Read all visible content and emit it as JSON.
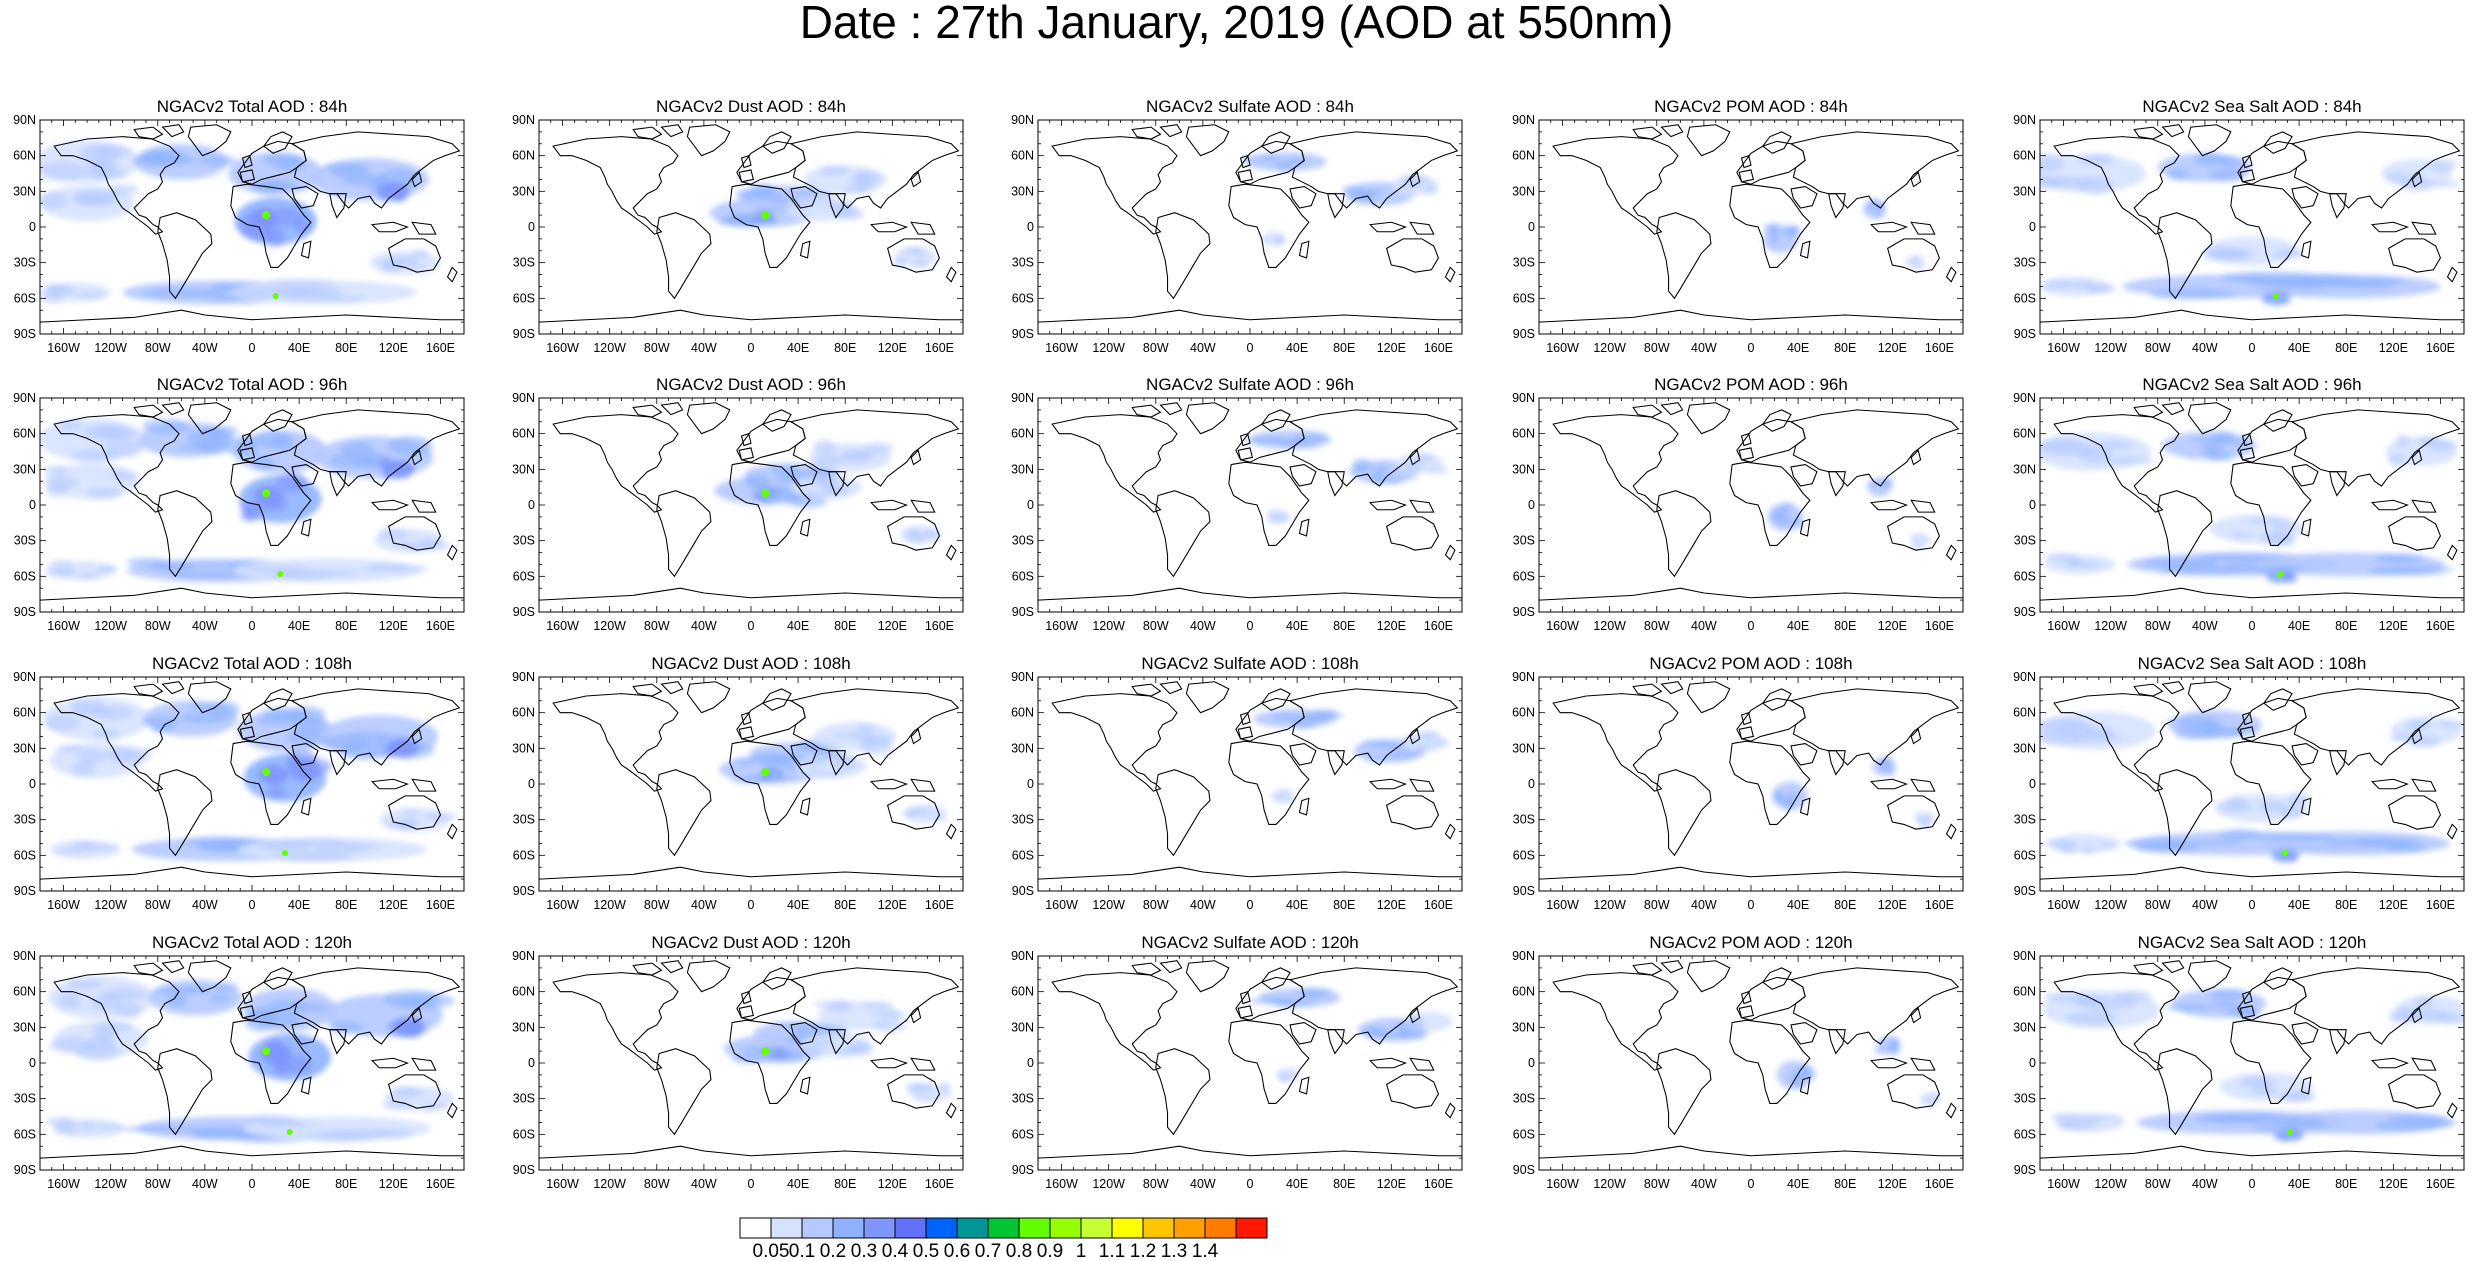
{
  "title": "Date : 27th January, 2019 (AOD at 550nm)",
  "columns": [
    "NGACv2 Total AOD",
    "NGACv2 Dust AOD",
    "NGACv2 Sulfate AOD",
    "NGACv2 POM AOD",
    "NGACv2 Sea Salt AOD"
  ],
  "panel_titles": [
    [
      "NGACv2 Total AOD : 84h",
      "NGACv2 Dust AOD : 84h",
      "NGACv2 Sulfate AOD : 84h",
      "NGACv2 POM AOD : 84h",
      "NGACv2 Sea Salt AOD : 84h"
    ],
    [
      "NGACv2 Total AOD : 96h",
      "NGACv2 Dust AOD : 96h",
      "NGACv2 Sulfate AOD : 96h",
      "NGACv2 POM AOD : 96h",
      "NGACv2 Sea Salt AOD : 96h"
    ],
    [
      "NGACv2 Total AOD : 108h",
      "NGACv2 Dust AOD : 108h",
      "NGACv2 Sulfate AOD : 108h",
      "NGACv2 POM AOD : 108h",
      "NGACv2 Sea Salt AOD : 108h"
    ],
    [
      "NGACv2 Total AOD : 120h",
      "NGACv2 Dust AOD : 120h",
      "NGACv2 Sulfate AOD : 120h",
      "NGACv2 POM AOD : 120h",
      "NGACv2 Sea Salt  AOD : 120h"
    ]
  ],
  "forecast_hours": [
    "84h",
    "96h",
    "108h",
    "120h"
  ],
  "lat_ticks": [
    "90N",
    "60N",
    "30N",
    "0",
    "30S",
    "60S",
    "90S"
  ],
  "lat_values": [
    90,
    60,
    30,
    0,
    -30,
    -60,
    -90
  ],
  "lon_ticks": [
    "160W",
    "120W",
    "80W",
    "40W",
    "0",
    "40E",
    "80E",
    "120E",
    "160E"
  ],
  "lon_values": [
    -160,
    -120,
    -80,
    -40,
    0,
    40,
    80,
    120,
    160
  ],
  "colorbar": {
    "labels": [
      "0.05",
      "0.1",
      "0.2",
      "0.3",
      "0.4",
      "0.5",
      "0.6",
      "0.7",
      "0.8",
      "0.9",
      "1",
      "1.1",
      "1.2",
      "1.3",
      "1.4"
    ],
    "colors": [
      "#ffffff",
      "#d6e2ff",
      "#b5c9ff",
      "#8eb2ff",
      "#7f96ff",
      "#6370f8",
      "#0063ff",
      "#009696",
      "#00c633",
      "#63ff00",
      "#96ff00",
      "#c6ff33",
      "#ffff00",
      "#ffc600",
      "#ffa000",
      "#ff7c00",
      "#ff1900"
    ]
  },
  "map_style": {
    "ocean": "#ffffff",
    "coastline": "#000000",
    "dust_color": "#8eb2ff",
    "hotspot_color": "#63ff00"
  }
}
